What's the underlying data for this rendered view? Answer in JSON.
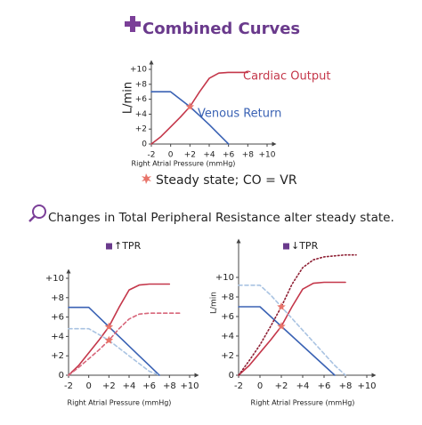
{
  "header": {
    "title": "Combined Curves"
  },
  "legend_note": "Steady state; CO = VR",
  "section_title": "Changes in Total Peripheral Resistance alter steady state.",
  "chart_data": [
    {
      "type": "line",
      "ylabel": "L/min",
      "xlabel": "Right Atrial Pressure (mmHg)",
      "x": [
        -2,
        -1,
        0,
        1,
        2,
        3,
        4,
        5,
        6,
        7,
        8,
        9,
        10
      ],
      "xlim": [
        -2,
        10
      ],
      "ylim": [
        0,
        10
      ],
      "xticks": [
        -2,
        0,
        {
          "value": 2,
          "label": "+2"
        },
        {
          "value": 4,
          "label": "+4"
        },
        {
          "value": 6,
          "label": "+6"
        },
        {
          "value": 8,
          "label": "+8"
        },
        {
          "value": 10,
          "label": "+10"
        }
      ],
      "yticks": [
        0,
        {
          "value": 2,
          "label": "+2"
        },
        {
          "value": 4,
          "label": "+4"
        },
        {
          "value": 6,
          "label": "+6"
        },
        {
          "value": 8,
          "label": "+8"
        },
        {
          "value": 10,
          "label": "+10"
        }
      ],
      "series": [
        {
          "name": "Cardiac Output",
          "color": "#c4374a",
          "dash": "solid",
          "values": [
            0,
            1,
            2.3,
            3.6,
            5,
            7,
            8.8,
            9.5,
            9.6,
            9.6,
            9.6,
            null,
            null
          ]
        },
        {
          "name": "Venous Return",
          "color": "#3a62b4",
          "dash": "solid",
          "values": [
            7,
            7,
            7,
            6,
            5,
            3.8,
            2.6,
            1.3,
            0,
            null,
            null,
            null,
            null
          ]
        }
      ],
      "steady_states": [
        {
          "x": 2,
          "y": 5
        }
      ]
    },
    {
      "type": "line",
      "title": "↑TPR",
      "xlabel": "Right Atrial Pressure (mmHg)",
      "x": [
        -2,
        -1,
        0,
        1,
        2,
        3,
        4,
        5,
        6,
        7,
        8,
        9,
        10
      ],
      "xlim": [
        -2,
        10
      ],
      "ylim": [
        0,
        10
      ],
      "xticks": [
        -2,
        0,
        {
          "value": 2,
          "label": "+2"
        },
        {
          "value": 4,
          "label": "+4"
        },
        {
          "value": 6,
          "label": "+6"
        },
        {
          "value": 8,
          "label": "+8"
        },
        {
          "value": 10,
          "label": "+10"
        }
      ],
      "yticks": [
        0,
        {
          "value": 2,
          "label": "+2"
        },
        {
          "value": 4,
          "label": "+4"
        },
        {
          "value": 6,
          "label": "+6"
        },
        {
          "value": 8,
          "label": "+8"
        },
        {
          "value": 10,
          "label": "+10"
        }
      ],
      "series": [
        {
          "color": "#c4374a",
          "dash": "solid",
          "values": [
            0,
            1,
            2.3,
            3.6,
            5,
            7,
            8.8,
            9.3,
            9.4,
            9.4,
            9.4,
            null,
            null
          ]
        },
        {
          "color": "#3a62b4",
          "dash": "solid",
          "values": [
            7,
            7,
            7,
            6,
            5,
            4,
            3,
            2,
            1,
            0,
            null,
            null,
            null
          ]
        },
        {
          "color": "#d7667a",
          "dash": "dashed",
          "values": [
            0,
            0.8,
            1.7,
            2.6,
            3.6,
            4.8,
            5.8,
            6.3,
            6.4,
            6.4,
            6.4,
            6.4,
            null
          ]
        },
        {
          "color": "#a9c3e2",
          "dash": "dashed",
          "values": [
            4.8,
            4.8,
            4.8,
            4.2,
            3.6,
            2.8,
            2,
            1.2,
            0.4,
            0,
            null,
            null,
            null
          ]
        }
      ],
      "steady_states": [
        {
          "x": 2,
          "y": 5
        },
        {
          "x": 2,
          "y": 3.6
        }
      ]
    },
    {
      "type": "line",
      "title": "↓TPR",
      "ylabel": "L/min",
      "xlabel": "Right Atrial Pressure (mmHg)",
      "x": [
        -2,
        -1,
        0,
        1,
        2,
        3,
        4,
        5,
        6,
        7,
        8,
        9,
        10
      ],
      "xlim": [
        -2,
        10
      ],
      "ylim": [
        0,
        13
      ],
      "xticks": [
        -2,
        0,
        {
          "value": 2,
          "label": "+2"
        },
        {
          "value": 4,
          "label": "+4"
        },
        {
          "value": 6,
          "label": "+6"
        },
        {
          "value": 8,
          "label": "+8"
        },
        {
          "value": 10,
          "label": "+10"
        }
      ],
      "yticks": [
        0,
        {
          "value": 2,
          "label": "+2"
        },
        {
          "value": 4,
          "label": "+4"
        },
        {
          "value": 6,
          "label": "+6"
        },
        {
          "value": 8,
          "label": "+8"
        },
        {
          "value": 10,
          "label": "+10"
        }
      ],
      "series": [
        {
          "color": "#c4374a",
          "dash": "solid",
          "values": [
            0,
            1,
            2.3,
            3.6,
            5,
            7,
            8.8,
            9.4,
            9.5,
            9.5,
            9.5,
            null,
            null
          ]
        },
        {
          "color": "#3a62b4",
          "dash": "solid",
          "values": [
            7,
            7,
            7,
            6,
            5,
            4,
            3,
            2,
            1,
            0,
            null,
            null,
            null
          ]
        },
        {
          "color": "#8e1f33",
          "dash": "dotted",
          "values": [
            0,
            1.5,
            3.1,
            5,
            7,
            9.3,
            11,
            11.8,
            12.1,
            12.2,
            12.3,
            12.3,
            null
          ]
        },
        {
          "color": "#a9c3e2",
          "dash": "dashed",
          "values": [
            9.2,
            9.2,
            9.2,
            8.2,
            7,
            5.8,
            4.6,
            3.4,
            2.2,
            1,
            0,
            null,
            null
          ]
        }
      ],
      "steady_states": [
        {
          "x": 2,
          "y": 5
        },
        {
          "x": 2,
          "y": 7
        }
      ]
    }
  ]
}
